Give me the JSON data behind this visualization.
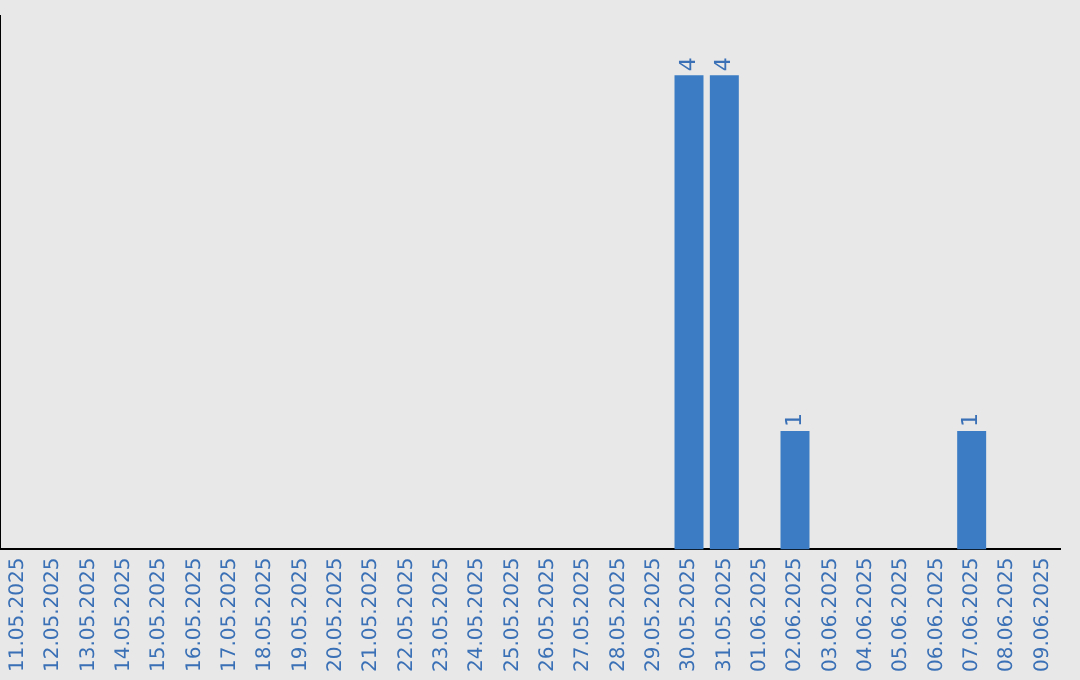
{
  "chart_data": {
    "type": "bar",
    "categories": [
      "11.05.2025",
      "12.05.2025",
      "13.05.2025",
      "14.05.2025",
      "15.05.2025",
      "16.05.2025",
      "17.05.2025",
      "18.05.2025",
      "19.05.2025",
      "20.05.2025",
      "21.05.2025",
      "22.05.2025",
      "23.05.2025",
      "24.05.2025",
      "25.05.2025",
      "26.05.2025",
      "27.05.2025",
      "28.05.2025",
      "29.05.2025",
      "30.05.2025",
      "31.05.2025",
      "01.06.2025",
      "02.06.2025",
      "03.06.2025",
      "04.06.2025",
      "05.06.2025",
      "06.06.2025",
      "07.06.2025",
      "08.06.2025",
      "09.06.2025"
    ],
    "values": [
      null,
      null,
      null,
      null,
      null,
      null,
      null,
      null,
      null,
      null,
      null,
      null,
      null,
      null,
      null,
      null,
      null,
      null,
      null,
      4,
      4,
      null,
      1,
      null,
      null,
      null,
      null,
      1,
      null,
      null
    ],
    "data_labels": true,
    "color": "#3b7cc4",
    "tick_labels": "x",
    "grid": false,
    "legend": false
  }
}
